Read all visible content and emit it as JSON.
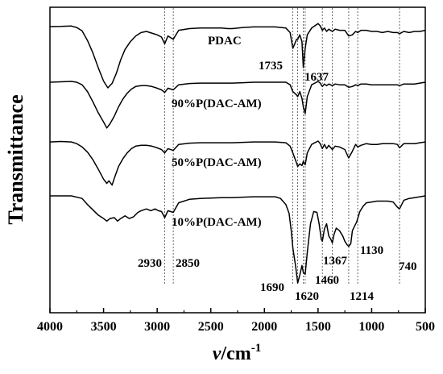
{
  "chart_data": {
    "type": "line",
    "title": "",
    "xlabel_italic": "v",
    "xlabel_rest": "/cm",
    "xlabel_sup": "-1",
    "ylabel": "Transmittance",
    "xlim": [
      4000,
      500
    ],
    "x_ticks": [
      4000,
      3500,
      3000,
      2500,
      2000,
      1500,
      1000,
      500
    ],
    "y_ticks_shown": false,
    "grid": false,
    "reference_lines": [
      2930,
      2850,
      1735,
      1690,
      1637,
      1620,
      1460,
      1367,
      1214,
      1130,
      740
    ],
    "series": [
      {
        "name": "PDAC",
        "points": [
          [
            4000,
            0.7
          ],
          [
            3900,
            0.6
          ],
          [
            3800,
            0.2
          ],
          [
            3750,
            1.5
          ],
          [
            3700,
            4.5
          ],
          [
            3650,
            13
          ],
          [
            3600,
            24
          ],
          [
            3550,
            37
          ],
          [
            3500,
            49
          ],
          [
            3460,
            55
          ],
          [
            3420,
            51
          ],
          [
            3380,
            42
          ],
          [
            3340,
            30
          ],
          [
            3300,
            21
          ],
          [
            3250,
            14
          ],
          [
            3200,
            9
          ],
          [
            3150,
            6
          ],
          [
            3100,
            5
          ],
          [
            3050,
            6.5
          ],
          [
            3000,
            8
          ],
          [
            2960,
            10
          ],
          [
            2930,
            16
          ],
          [
            2900,
            9
          ],
          [
            2850,
            12
          ],
          [
            2800,
            4
          ],
          [
            2700,
            2.5
          ],
          [
            2600,
            2
          ],
          [
            2500,
            2
          ],
          [
            2400,
            2
          ],
          [
            2340,
            2.5
          ],
          [
            2300,
            2.5
          ],
          [
            2200,
            1.5
          ],
          [
            2100,
            1
          ],
          [
            2000,
            1
          ],
          [
            1900,
            1
          ],
          [
            1800,
            2
          ],
          [
            1760,
            6
          ],
          [
            1735,
            20
          ],
          [
            1700,
            12
          ],
          [
            1690,
            12
          ],
          [
            1670,
            8
          ],
          [
            1650,
            14
          ],
          [
            1637,
            37
          ],
          [
            1620,
            20
          ],
          [
            1600,
            8
          ],
          [
            1560,
            2
          ],
          [
            1500,
            -2
          ],
          [
            1480,
            0
          ],
          [
            1460,
            4
          ],
          [
            1440,
            2
          ],
          [
            1420,
            5
          ],
          [
            1400,
            3
          ],
          [
            1367,
            5
          ],
          [
            1340,
            3
          ],
          [
            1300,
            4
          ],
          [
            1250,
            4
          ],
          [
            1214,
            9
          ],
          [
            1180,
            8
          ],
          [
            1150,
            5
          ],
          [
            1130,
            6
          ],
          [
            1100,
            4
          ],
          [
            1050,
            4
          ],
          [
            1000,
            5
          ],
          [
            950,
            5
          ],
          [
            900,
            6
          ],
          [
            850,
            5
          ],
          [
            800,
            6
          ],
          [
            760,
            6
          ],
          [
            740,
            7
          ],
          [
            700,
            5
          ],
          [
            650,
            6
          ],
          [
            600,
            5
          ],
          [
            550,
            5
          ],
          [
            500,
            4
          ]
        ]
      },
      {
        "name": "90%P(DAC-AM)",
        "points": [
          [
            4000,
            1
          ],
          [
            3900,
            0.5
          ],
          [
            3800,
            0
          ],
          [
            3750,
            1
          ],
          [
            3700,
            4
          ],
          [
            3650,
            12
          ],
          [
            3600,
            24
          ],
          [
            3550,
            37
          ],
          [
            3500,
            48
          ],
          [
            3470,
            55
          ],
          [
            3440,
            50
          ],
          [
            3400,
            41
          ],
          [
            3360,
            30
          ],
          [
            3320,
            21
          ],
          [
            3280,
            14
          ],
          [
            3240,
            9
          ],
          [
            3200,
            6
          ],
          [
            3150,
            5
          ],
          [
            3100,
            5
          ],
          [
            3050,
            6
          ],
          [
            3000,
            8
          ],
          [
            2960,
            10
          ],
          [
            2930,
            13
          ],
          [
            2900,
            8
          ],
          [
            2850,
            10
          ],
          [
            2800,
            4
          ],
          [
            2700,
            2.5
          ],
          [
            2600,
            2
          ],
          [
            2500,
            2
          ],
          [
            2400,
            2
          ],
          [
            2300,
            2
          ],
          [
            2200,
            1.5
          ],
          [
            2100,
            1
          ],
          [
            2000,
            1
          ],
          [
            1900,
            1
          ],
          [
            1800,
            1
          ],
          [
            1760,
            4
          ],
          [
            1735,
            12
          ],
          [
            1700,
            16
          ],
          [
            1690,
            18
          ],
          [
            1670,
            12
          ],
          [
            1650,
            20
          ],
          [
            1637,
            30
          ],
          [
            1620,
            38
          ],
          [
            1600,
            18
          ],
          [
            1560,
            4
          ],
          [
            1500,
            0
          ],
          [
            1480,
            2
          ],
          [
            1460,
            6
          ],
          [
            1440,
            3
          ],
          [
            1420,
            5
          ],
          [
            1400,
            3
          ],
          [
            1367,
            5
          ],
          [
            1340,
            3
          ],
          [
            1300,
            4
          ],
          [
            1250,
            4
          ],
          [
            1214,
            7
          ],
          [
            1180,
            6
          ],
          [
            1150,
            4
          ],
          [
            1130,
            5
          ],
          [
            1100,
            3
          ],
          [
            1050,
            3
          ],
          [
            1000,
            4
          ],
          [
            950,
            4
          ],
          [
            900,
            4
          ],
          [
            850,
            4
          ],
          [
            800,
            4
          ],
          [
            760,
            4
          ],
          [
            740,
            5
          ],
          [
            700,
            3
          ],
          [
            650,
            3
          ],
          [
            600,
            3
          ],
          [
            550,
            2
          ],
          [
            500,
            1
          ]
        ]
      },
      {
        "name": "50%P(DAC-AM)",
        "points": [
          [
            4000,
            1
          ],
          [
            3900,
            0.5
          ],
          [
            3800,
            1
          ],
          [
            3750,
            3
          ],
          [
            3700,
            7
          ],
          [
            3650,
            13
          ],
          [
            3600,
            22
          ],
          [
            3550,
            33
          ],
          [
            3500,
            45
          ],
          [
            3470,
            50
          ],
          [
            3450,
            47
          ],
          [
            3420,
            52
          ],
          [
            3400,
            44
          ],
          [
            3360,
            30
          ],
          [
            3320,
            21
          ],
          [
            3280,
            14
          ],
          [
            3240,
            9
          ],
          [
            3200,
            6
          ],
          [
            3150,
            5
          ],
          [
            3100,
            5
          ],
          [
            3050,
            6
          ],
          [
            3000,
            8
          ],
          [
            2960,
            10
          ],
          [
            2930,
            14
          ],
          [
            2900,
            9
          ],
          [
            2850,
            11
          ],
          [
            2800,
            4
          ],
          [
            2700,
            2.5
          ],
          [
            2600,
            2
          ],
          [
            2500,
            2
          ],
          [
            2400,
            2
          ],
          [
            2300,
            2
          ],
          [
            2200,
            1.5
          ],
          [
            2100,
            1
          ],
          [
            2000,
            1
          ],
          [
            1900,
            1
          ],
          [
            1800,
            2
          ],
          [
            1760,
            6
          ],
          [
            1735,
            14
          ],
          [
            1700,
            26
          ],
          [
            1690,
            30
          ],
          [
            1670,
            27
          ],
          [
            1650,
            29
          ],
          [
            1637,
            24
          ],
          [
            1620,
            28
          ],
          [
            1600,
            14
          ],
          [
            1560,
            4
          ],
          [
            1500,
            0
          ],
          [
            1480,
            3
          ],
          [
            1460,
            9
          ],
          [
            1440,
            4
          ],
          [
            1420,
            9
          ],
          [
            1400,
            5
          ],
          [
            1367,
            10
          ],
          [
            1340,
            6
          ],
          [
            1300,
            7
          ],
          [
            1250,
            10
          ],
          [
            1214,
            20
          ],
          [
            1180,
            12
          ],
          [
            1150,
            4
          ],
          [
            1130,
            7
          ],
          [
            1100,
            5
          ],
          [
            1050,
            3
          ],
          [
            1000,
            4
          ],
          [
            950,
            4
          ],
          [
            900,
            3
          ],
          [
            850,
            3
          ],
          [
            800,
            3
          ],
          [
            760,
            4
          ],
          [
            740,
            8
          ],
          [
            700,
            3
          ],
          [
            650,
            3
          ],
          [
            600,
            3
          ],
          [
            550,
            2
          ],
          [
            500,
            1
          ]
        ]
      },
      {
        "name": "10%P(DAC-AM)",
        "points": [
          [
            4000,
            0
          ],
          [
            3900,
            0
          ],
          [
            3800,
            0
          ],
          [
            3700,
            3
          ],
          [
            3650,
            10
          ],
          [
            3600,
            16
          ],
          [
            3550,
            22
          ],
          [
            3500,
            26
          ],
          [
            3470,
            29
          ],
          [
            3440,
            26
          ],
          [
            3400,
            25
          ],
          [
            3370,
            29
          ],
          [
            3340,
            26
          ],
          [
            3300,
            23
          ],
          [
            3260,
            26
          ],
          [
            3220,
            24
          ],
          [
            3180,
            19
          ],
          [
            3150,
            17
          ],
          [
            3100,
            15
          ],
          [
            3060,
            17
          ],
          [
            3020,
            15
          ],
          [
            2990,
            17
          ],
          [
            2960,
            18
          ],
          [
            2930,
            25
          ],
          [
            2900,
            17
          ],
          [
            2850,
            19
          ],
          [
            2800,
            8
          ],
          [
            2700,
            4
          ],
          [
            2600,
            3
          ],
          [
            2500,
            2.5
          ],
          [
            2400,
            2
          ],
          [
            2300,
            2
          ],
          [
            2200,
            1.5
          ],
          [
            2100,
            1
          ],
          [
            2000,
            1
          ],
          [
            1900,
            1
          ],
          [
            1850,
            3
          ],
          [
            1800,
            10
          ],
          [
            1770,
            20
          ],
          [
            1750,
            40
          ],
          [
            1735,
            60
          ],
          [
            1710,
            80
          ],
          [
            1690,
            100
          ],
          [
            1670,
            91
          ],
          [
            1650,
            80
          ],
          [
            1637,
            88
          ],
          [
            1620,
            90
          ],
          [
            1600,
            65
          ],
          [
            1570,
            32
          ],
          [
            1540,
            18
          ],
          [
            1510,
            19
          ],
          [
            1490,
            32
          ],
          [
            1470,
            50
          ],
          [
            1460,
            52
          ],
          [
            1440,
            38
          ],
          [
            1420,
            32
          ],
          [
            1400,
            46
          ],
          [
            1380,
            50
          ],
          [
            1367,
            54
          ],
          [
            1350,
            44
          ],
          [
            1330,
            37
          ],
          [
            1300,
            40
          ],
          [
            1270,
            46
          ],
          [
            1250,
            52
          ],
          [
            1230,
            56
          ],
          [
            1214,
            58
          ],
          [
            1195,
            55
          ],
          [
            1180,
            40
          ],
          [
            1160,
            35
          ],
          [
            1140,
            30
          ],
          [
            1130,
            26
          ],
          [
            1110,
            18
          ],
          [
            1080,
            12
          ],
          [
            1050,
            8
          ],
          [
            1000,
            7
          ],
          [
            950,
            6
          ],
          [
            900,
            6
          ],
          [
            850,
            6
          ],
          [
            800,
            7
          ],
          [
            780,
            10
          ],
          [
            760,
            13
          ],
          [
            740,
            15
          ],
          [
            720,
            10
          ],
          [
            700,
            5
          ],
          [
            650,
            3
          ],
          [
            600,
            2
          ],
          [
            550,
            1
          ],
          [
            500,
            0
          ]
        ]
      }
    ],
    "peak_labels": [
      "1735",
      "1637",
      "2930",
      "2850",
      "1367",
      "1130",
      "740",
      "1460",
      "1690",
      "1620",
      "1214"
    ]
  }
}
